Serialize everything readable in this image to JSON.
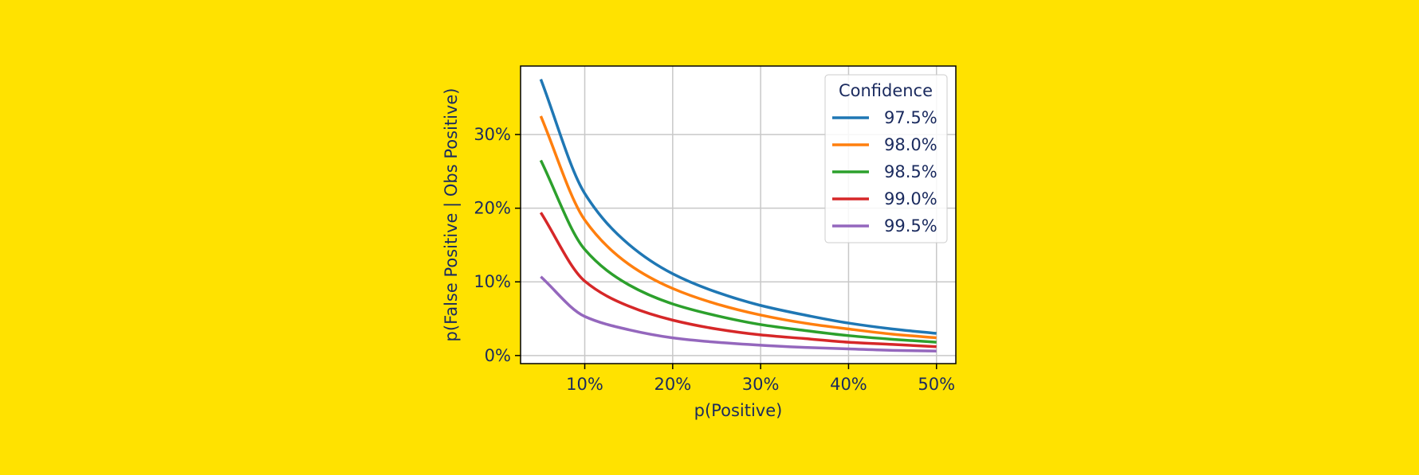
{
  "colors": {
    "background": "#FFE200",
    "text": "#1a2a5e",
    "grid": "#c8c8c8",
    "frame": "#000000"
  },
  "chart_data": {
    "type": "line",
    "title": "",
    "xlabel": "p(Positive)",
    "ylabel": "p(False Positive | Obs Positive)",
    "xlim": [
      0.027,
      0.522
    ],
    "ylim": [
      -0.011,
      0.393
    ],
    "x_ticks": [
      0.1,
      0.2,
      0.3,
      0.4,
      0.5
    ],
    "x_tick_labels": [
      "10%",
      "20%",
      "30%",
      "40%",
      "50%"
    ],
    "y_ticks": [
      0.0,
      0.1,
      0.2,
      0.3
    ],
    "y_tick_labels": [
      "0%",
      "10%",
      "20%",
      "30%"
    ],
    "grid": true,
    "legend": {
      "title": "Confidence",
      "placement": "top-right"
    },
    "x": [
      0.05,
      0.1,
      0.15,
      0.2,
      0.25,
      0.3,
      0.35,
      0.4,
      0.45,
      0.5
    ],
    "series": [
      {
        "name": "97.5%",
        "color": "#1f77b4",
        "values": [
          0.375,
          0.22,
          0.151,
          0.111,
          0.086,
          0.068,
          0.055,
          0.044,
          0.036,
          0.03
        ]
      },
      {
        "name": "98.0%",
        "color": "#ff7f0e",
        "values": [
          0.325,
          0.184,
          0.124,
          0.091,
          0.07,
          0.055,
          0.044,
          0.036,
          0.029,
          0.024
        ]
      },
      {
        "name": "98.5%",
        "color": "#2ca02c",
        "values": [
          0.265,
          0.144,
          0.096,
          0.07,
          0.054,
          0.042,
          0.034,
          0.027,
          0.022,
          0.018
        ]
      },
      {
        "name": "99.0%",
        "color": "#d62728",
        "values": [
          0.194,
          0.101,
          0.067,
          0.048,
          0.036,
          0.028,
          0.023,
          0.018,
          0.015,
          0.012
        ]
      },
      {
        "name": "99.5%",
        "color": "#9467bd",
        "values": [
          0.107,
          0.053,
          0.035,
          0.024,
          0.018,
          0.014,
          0.011,
          0.009,
          0.007,
          0.006
        ]
      }
    ]
  }
}
